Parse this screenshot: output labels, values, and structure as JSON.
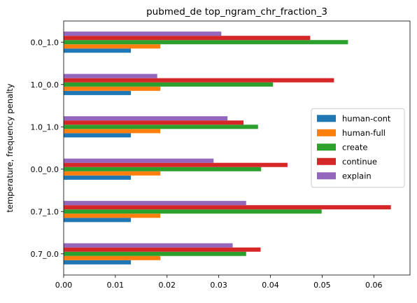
{
  "chart_data": {
    "type": "bar",
    "orientation": "horizontal",
    "title": "pubmed_de top_ngram_chr_fraction_3",
    "xlabel": "",
    "ylabel": "temperature, frequency penalty",
    "categories": [
      "0.7_0.0",
      "0.7_1.0",
      "0.0_0.0",
      "1.0_1.0",
      "1.0_0.0",
      "0.0_1.0"
    ],
    "xlim": [
      0,
      0.067
    ],
    "xticks": [
      0.0,
      0.01,
      0.02,
      0.03,
      0.04,
      0.05,
      0.06
    ],
    "xtick_labels": [
      "0.00",
      "0.01",
      "0.02",
      "0.03",
      "0.04",
      "0.05",
      "0.06"
    ],
    "grid": false,
    "legend_position": "center-right",
    "series": [
      {
        "name": "human-cont",
        "color": "#1f77b4",
        "values": [
          0.013,
          0.013,
          0.013,
          0.013,
          0.013,
          0.013
        ]
      },
      {
        "name": "human-full",
        "color": "#ff7f0e",
        "values": [
          0.0187,
          0.0187,
          0.0187,
          0.0187,
          0.0187,
          0.0187
        ]
      },
      {
        "name": "create",
        "color": "#2ca02c",
        "values": [
          0.0353,
          0.0499,
          0.0382,
          0.0376,
          0.0405,
          0.055
        ]
      },
      {
        "name": "continue",
        "color": "#d62728",
        "values": [
          0.0381,
          0.0633,
          0.0433,
          0.0348,
          0.0523,
          0.0477
        ]
      },
      {
        "name": "explain",
        "color": "#9467bd",
        "values": [
          0.0327,
          0.0353,
          0.029,
          0.0317,
          0.0181,
          0.0305
        ]
      }
    ]
  }
}
